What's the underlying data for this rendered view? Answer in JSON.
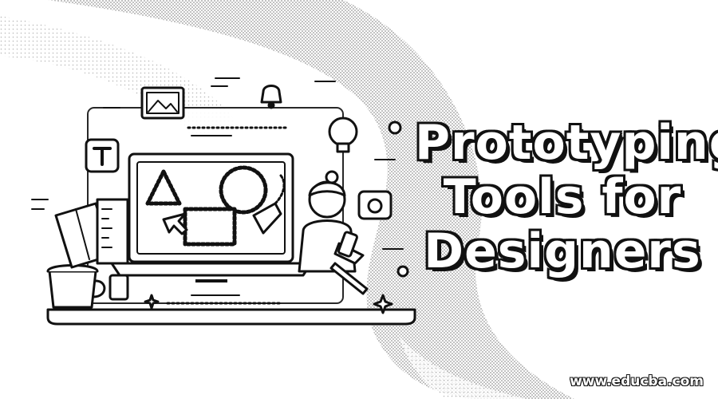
{
  "title": {
    "line1": "Prototyping",
    "line2": "Tools for",
    "line3": "Designers"
  },
  "watermark": "www.educba.com",
  "colors": {
    "background": "#ffffff",
    "ink": "#111111",
    "swirl": "#9a9a9a"
  }
}
